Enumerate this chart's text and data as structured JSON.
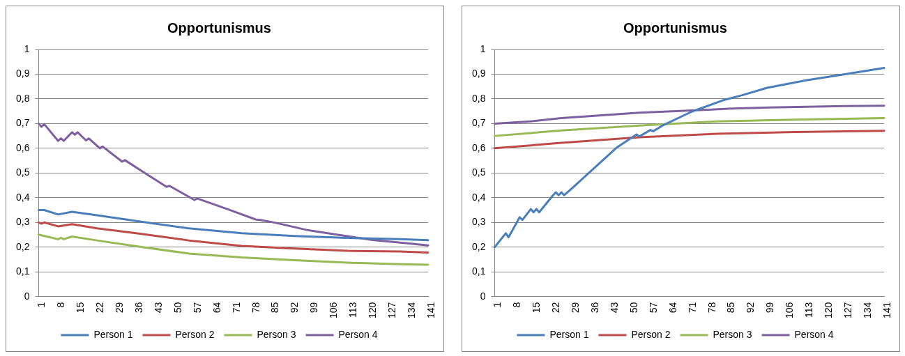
{
  "chart_data": [
    {
      "type": "line",
      "title": "Opportunismus",
      "xlim": [
        1,
        141
      ],
      "xticks": [
        1,
        8,
        15,
        22,
        29,
        36,
        43,
        50,
        57,
        64,
        71,
        78,
        85,
        92,
        99,
        106,
        113,
        120,
        127,
        134,
        141
      ],
      "ylim": [
        0,
        1
      ],
      "yticks": [
        {
          "value": 0,
          "label": "0"
        },
        {
          "value": 0.1,
          "label": "0,1"
        },
        {
          "value": 0.2,
          "label": "0,2"
        },
        {
          "value": 0.3,
          "label": "0,3"
        },
        {
          "value": 0.4,
          "label": "0,4"
        },
        {
          "value": 0.5,
          "label": "0,5"
        },
        {
          "value": 0.6,
          "label": "0,6"
        },
        {
          "value": 0.7,
          "label": "0,7"
        },
        {
          "value": 0.8,
          "label": "0,8"
        },
        {
          "value": 0.9,
          "label": "0,9"
        },
        {
          "value": 1,
          "label": "1"
        }
      ],
      "grid": "y",
      "legend": "bottom",
      "marker": "none",
      "line_style": "solid",
      "series": [
        {
          "name": "Person 1",
          "color": "#4a7ebb",
          "x": [
            1,
            3,
            8,
            13,
            22,
            37,
            55,
            74,
            93,
            112,
            131,
            141
          ],
          "values": [
            0.35,
            0.35,
            0.332,
            0.343,
            0.329,
            0.304,
            0.276,
            0.256,
            0.245,
            0.237,
            0.232,
            0.228
          ]
        },
        {
          "name": "Person 2",
          "color": "#be4b48",
          "x": [
            1,
            2,
            3,
            8,
            13,
            22,
            37,
            55,
            74,
            93,
            112,
            131,
            141
          ],
          "values": [
            0.3,
            0.295,
            0.3,
            0.284,
            0.293,
            0.276,
            0.255,
            0.227,
            0.205,
            0.194,
            0.185,
            0.182,
            0.178
          ]
        },
        {
          "name": "Person 3",
          "color": "#98b954",
          "x": [
            1,
            2,
            8,
            9,
            10,
            13,
            22,
            37,
            55,
            74,
            93,
            112,
            131,
            141
          ],
          "values": [
            0.251,
            0.248,
            0.232,
            0.238,
            0.232,
            0.243,
            0.227,
            0.202,
            0.174,
            0.158,
            0.147,
            0.137,
            0.131,
            0.129
          ]
        },
        {
          "name": "Person 4",
          "color": "#7d60a0",
          "x": [
            1,
            2,
            3,
            8,
            9,
            10,
            13,
            14,
            15,
            18,
            19,
            23,
            24,
            31,
            32,
            40,
            47,
            48,
            57,
            58,
            69,
            79,
            81,
            86,
            98,
            109,
            121,
            133,
            141
          ],
          "values": [
            0.7,
            0.687,
            0.698,
            0.63,
            0.64,
            0.63,
            0.665,
            0.655,
            0.665,
            0.632,
            0.64,
            0.6,
            0.607,
            0.546,
            0.552,
            0.494,
            0.444,
            0.448,
            0.391,
            0.397,
            0.353,
            0.312,
            0.309,
            0.299,
            0.268,
            0.249,
            0.229,
            0.216,
            0.207
          ]
        }
      ]
    },
    {
      "type": "line",
      "title": "Opportunismus",
      "xlim": [
        1,
        141
      ],
      "xticks": [
        1,
        8,
        15,
        22,
        29,
        36,
        43,
        50,
        57,
        64,
        71,
        78,
        85,
        92,
        99,
        106,
        113,
        120,
        127,
        134,
        141
      ],
      "ylim": [
        0,
        1
      ],
      "yticks": [
        {
          "value": 0,
          "label": "0"
        },
        {
          "value": 0.1,
          "label": "0,1"
        },
        {
          "value": 0.2,
          "label": "0,2"
        },
        {
          "value": 0.3,
          "label": "0,3"
        },
        {
          "value": 0.4,
          "label": "0,4"
        },
        {
          "value": 0.5,
          "label": "0,5"
        },
        {
          "value": 0.6,
          "label": "0,6"
        },
        {
          "value": 0.7,
          "label": "0,7"
        },
        {
          "value": 0.8,
          "label": "0,8"
        },
        {
          "value": 0.9,
          "label": "0,9"
        },
        {
          "value": 1,
          "label": "1"
        }
      ],
      "grid": "y",
      "legend": "bottom",
      "marker": "none",
      "line_style": "solid",
      "series": [
        {
          "name": "Person 1",
          "color": "#4a7ebb",
          "x": [
            1,
            5,
            6,
            10,
            11,
            14,
            15,
            16,
            17,
            22,
            23,
            24,
            25,
            26,
            29,
            36,
            45,
            52,
            53,
            57,
            58,
            62,
            72,
            83,
            90,
            99,
            113,
            127,
            141
          ],
          "values": [
            0.2,
            0.256,
            0.24,
            0.321,
            0.31,
            0.354,
            0.341,
            0.354,
            0.341,
            0.41,
            0.422,
            0.41,
            0.422,
            0.41,
            0.44,
            0.512,
            0.604,
            0.656,
            0.648,
            0.674,
            0.669,
            0.696,
            0.749,
            0.794,
            0.815,
            0.845,
            0.875,
            0.9,
            0.925
          ]
        },
        {
          "name": "Person 2",
          "color": "#be4b48",
          "x": [
            1,
            25,
            53,
            81,
            109,
            141
          ],
          "values": [
            0.6,
            0.622,
            0.645,
            0.659,
            0.666,
            0.671
          ]
        },
        {
          "name": "Person 3",
          "color": "#98b954",
          "x": [
            1,
            25,
            53,
            81,
            109,
            141
          ],
          "values": [
            0.65,
            0.672,
            0.692,
            0.709,
            0.716,
            0.722
          ]
        },
        {
          "name": "Person 4",
          "color": "#7d60a0",
          "x": [
            1,
            15,
            25,
            35,
            53,
            75,
            85,
            100,
            113,
            127,
            141
          ],
          "values": [
            0.7,
            0.71,
            0.722,
            0.73,
            0.744,
            0.755,
            0.76,
            0.765,
            0.768,
            0.771,
            0.772
          ]
        }
      ]
    }
  ]
}
